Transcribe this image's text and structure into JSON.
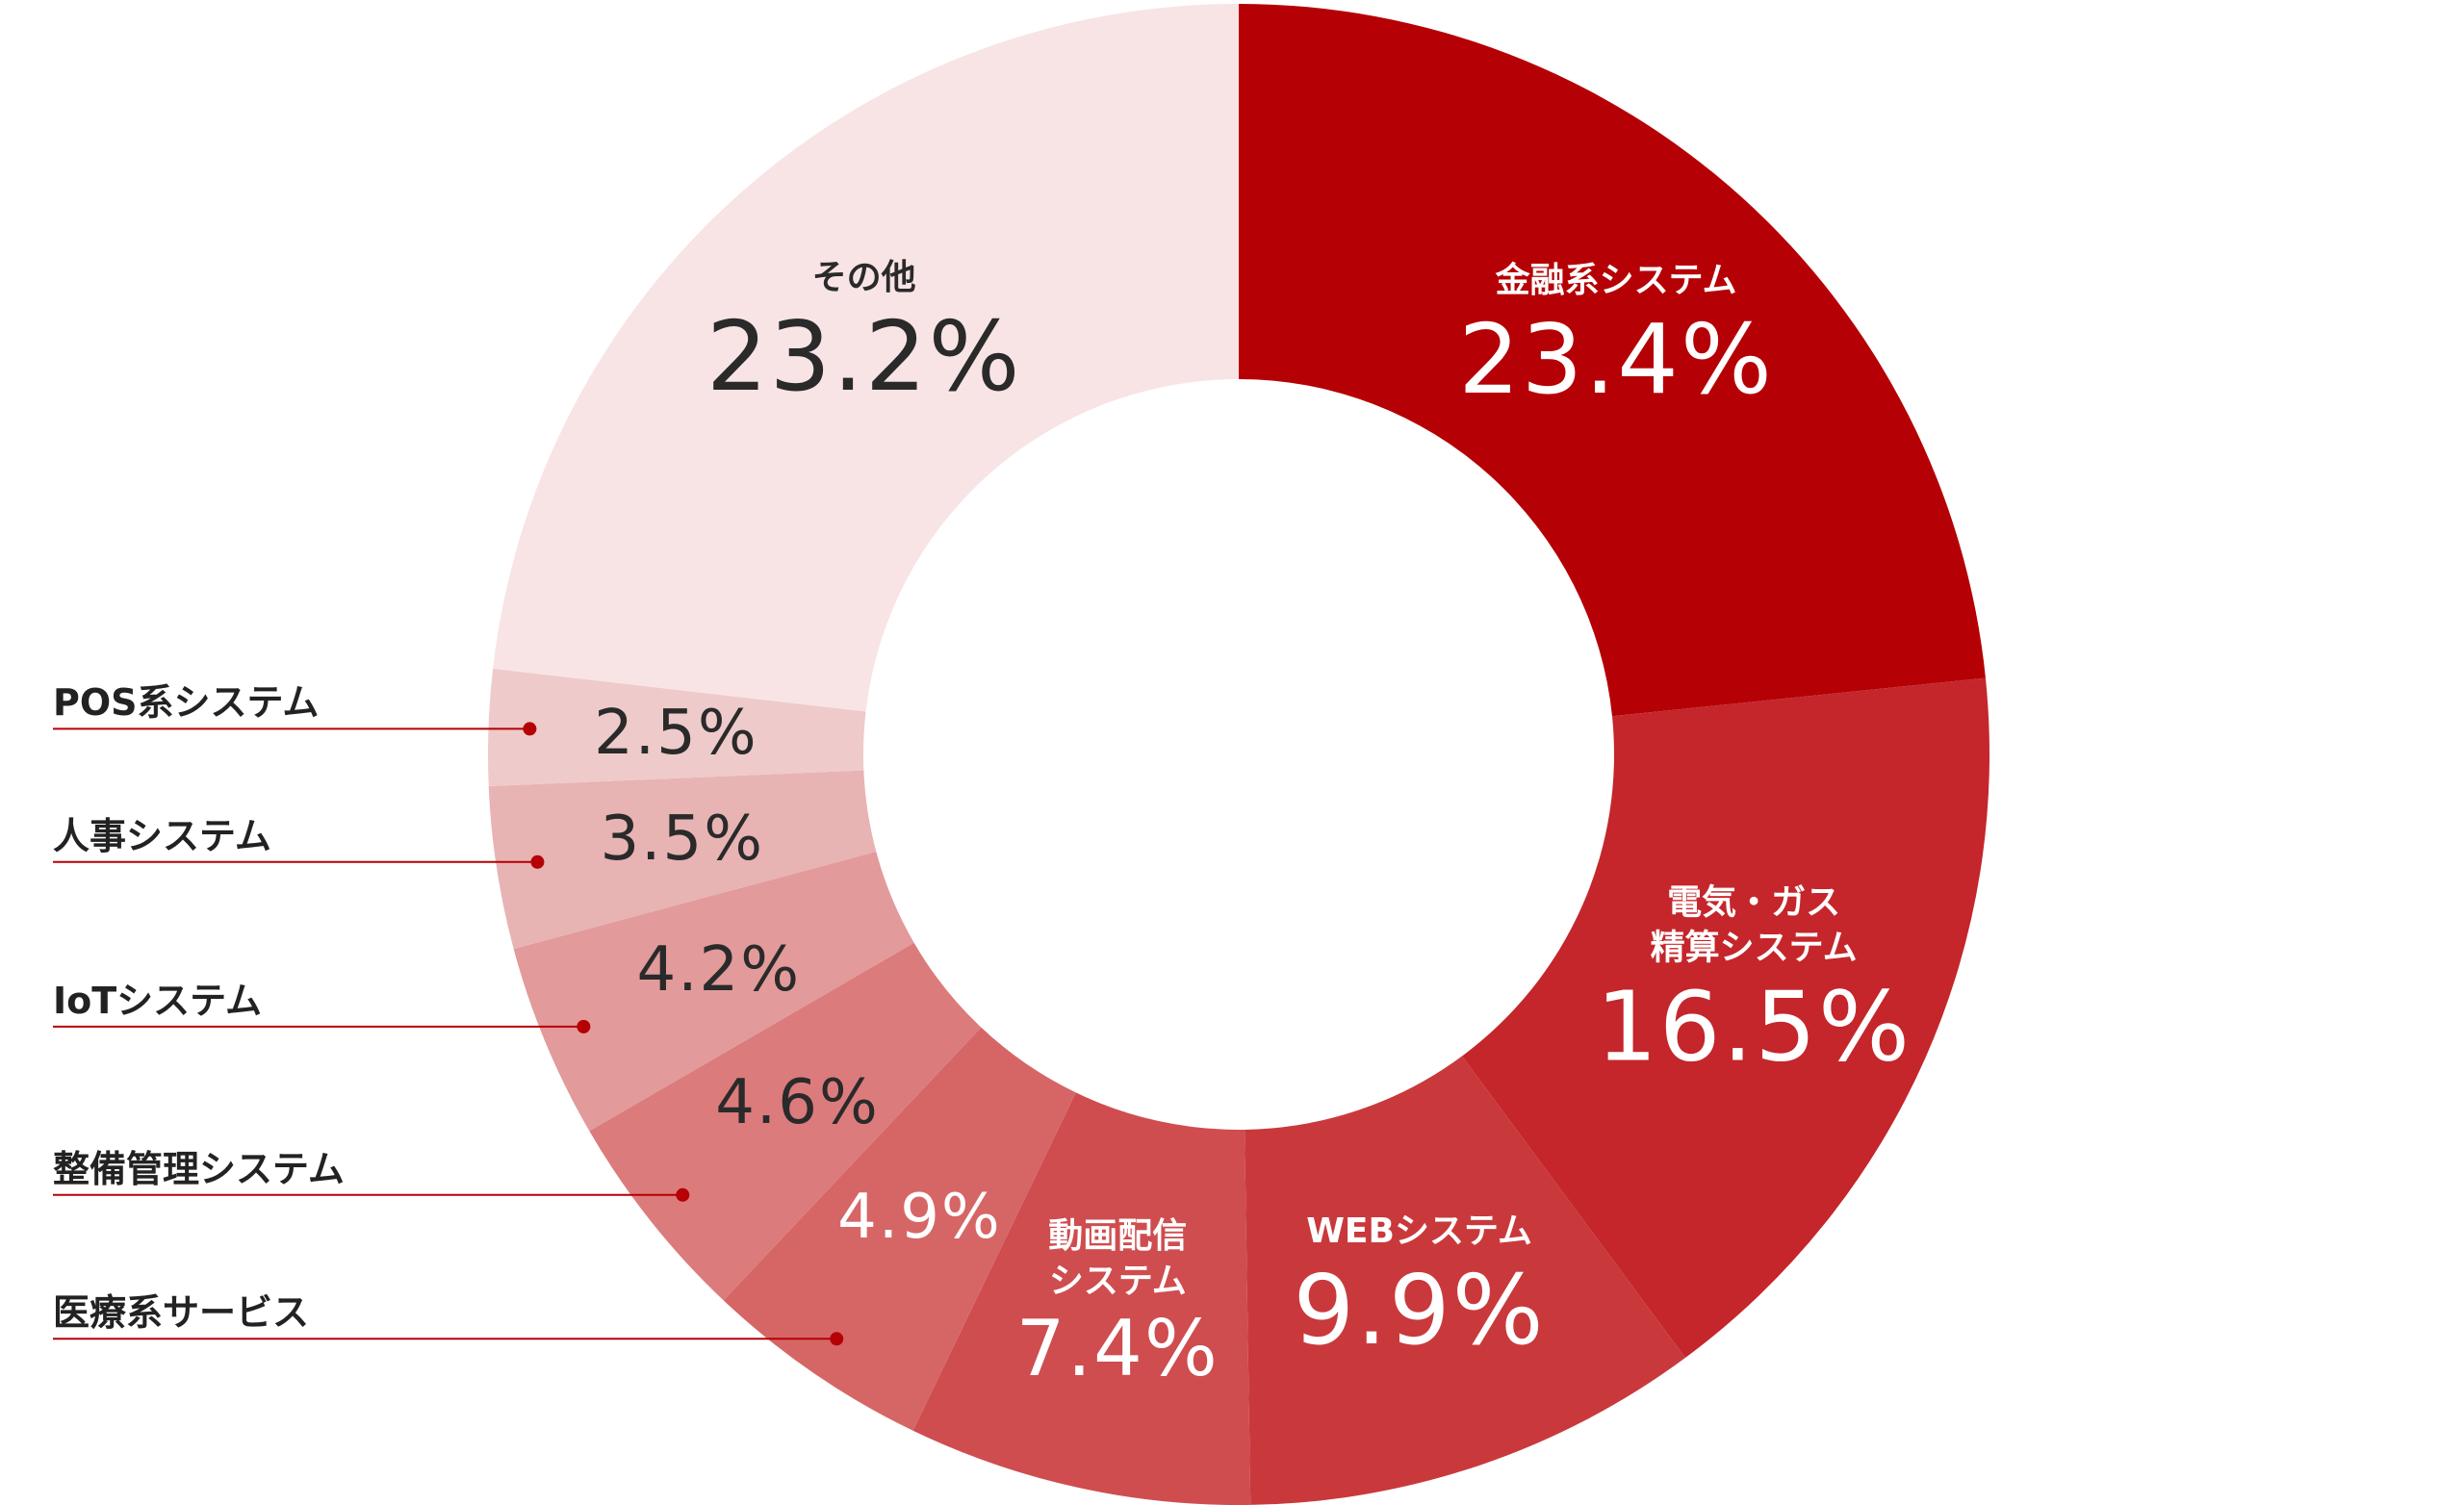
{
  "chart_data": {
    "type": "donut",
    "categories": [
      "金融系システム",
      "電気・ガス\n精算システム",
      "WEBシステム",
      "動画配信\nシステム",
      "医療系サービス",
      "整備管理システム",
      "IoTシステム",
      "人事システム",
      "POS系システム",
      "その他"
    ],
    "values": [
      23.4,
      16.5,
      9.9,
      7.4,
      4.9,
      4.6,
      4.2,
      3.5,
      2.5,
      23.2
    ],
    "value_labels": [
      "23.4%",
      "16.5%",
      "9.9%",
      "7.4%",
      "4.9%",
      "4.6%",
      "4.2%",
      "3.5%",
      "2.5%",
      "23.2%"
    ],
    "colors": [
      "#b50005",
      "#c4262b",
      "#c9393c",
      "#cf4d4f",
      "#d66666",
      "#dc7b7c",
      "#e29a9a",
      "#e8b3b3",
      "#efcaca",
      "#f8e4e5"
    ]
  }
}
